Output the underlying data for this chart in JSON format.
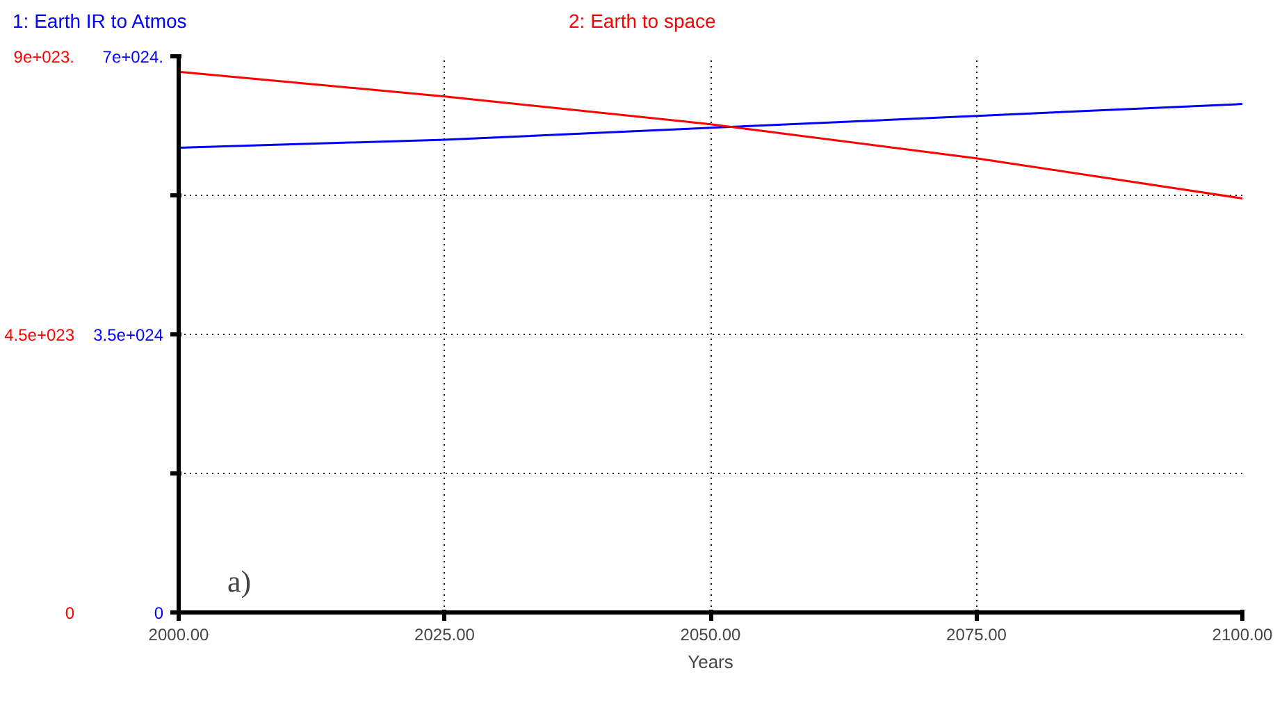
{
  "chart_data": {
    "type": "line",
    "xlabel": "Years",
    "x": [
      2000,
      2025,
      2050,
      2075,
      2100
    ],
    "series": [
      {
        "name": "1: Earth IR to Atmos",
        "color": "#0000ff",
        "values": [
          5.85e+24,
          5.95e+24,
          6.1e+24,
          6.25e+24,
          6.4e+24
        ]
      },
      {
        "name": "2: Earth to space",
        "color": "#ff0000",
        "axis": "y2",
        "values": [
          8.75e+23,
          8.35e+23,
          7.9e+23,
          7.35e+23,
          6.7e+23
        ]
      }
    ],
    "xlim": [
      2000,
      2100
    ],
    "xticks": [
      {
        "value": 2000,
        "label": "2000.00"
      },
      {
        "value": 2025,
        "label": "2025.00"
      },
      {
        "value": 2050,
        "label": "2050.00"
      },
      {
        "value": 2075,
        "label": "2075.00"
      },
      {
        "value": 2100,
        "label": "2100.00"
      }
    ],
    "ylim": [
      0,
      7e+24
    ],
    "yticks": [
      {
        "value": 0,
        "label": "0"
      },
      {
        "value": 1.75e+24,
        "label": null
      },
      {
        "value": 3.5e+24,
        "label": "3.5e+024"
      },
      {
        "value": 5.25e+24,
        "label": null
      },
      {
        "value": 7e+24,
        "label": "7e+024."
      }
    ],
    "y2lim": [
      0,
      9e+23
    ],
    "y2ticks": [
      {
        "value": 0,
        "label": "0"
      },
      {
        "value": 2.25e+23,
        "label": null
      },
      {
        "value": 4.5e+23,
        "label": "4.5e+023"
      },
      {
        "value": 6.75e+23,
        "label": null
      },
      {
        "value": 9e+23,
        "label": "9e+023."
      }
    ],
    "annotations": [
      "a)"
    ],
    "grid": true,
    "legend": "top",
    "line_style": "solid"
  }
}
